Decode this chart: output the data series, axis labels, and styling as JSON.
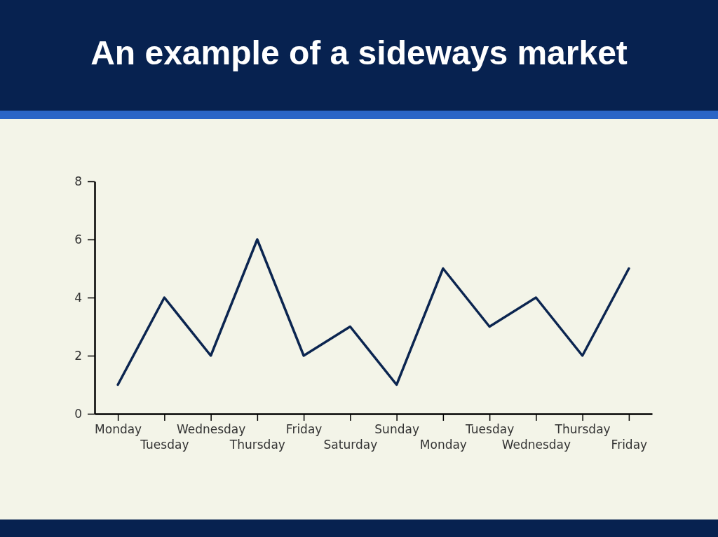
{
  "chart_data": {
    "type": "line",
    "title": "An example of a sideways market",
    "categories": [
      "Monday",
      "Tuesday",
      "Wednesday",
      "Thursday",
      "Friday",
      "Saturday",
      "Sunday",
      "Monday",
      "Tuesday",
      "Wednesday",
      "Thursday",
      "Friday"
    ],
    "values": [
      1,
      4,
      2,
      6,
      2,
      3,
      1,
      5,
      3,
      4,
      2,
      5
    ],
    "color": "#0b2550",
    "ylim": [
      0,
      8
    ],
    "yticks": [
      0,
      2,
      4,
      6,
      8
    ]
  }
}
